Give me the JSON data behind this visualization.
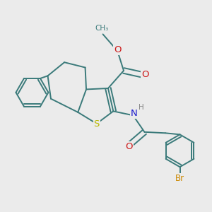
{
  "background_color": "#ebebeb",
  "bond_color": "#3a7a7a",
  "bond_width": 1.4,
  "atom_colors": {
    "S": "#b8b800",
    "N": "#1a1acc",
    "O": "#cc1a1a",
    "Br": "#cc8800",
    "H": "#888888",
    "C": "#3a7a7a"
  },
  "font_size": 8.5,
  "fig_size": [
    3.0,
    3.0
  ],
  "dpi": 100,
  "xlim": [
    0,
    10
  ],
  "ylim": [
    0,
    10
  ]
}
